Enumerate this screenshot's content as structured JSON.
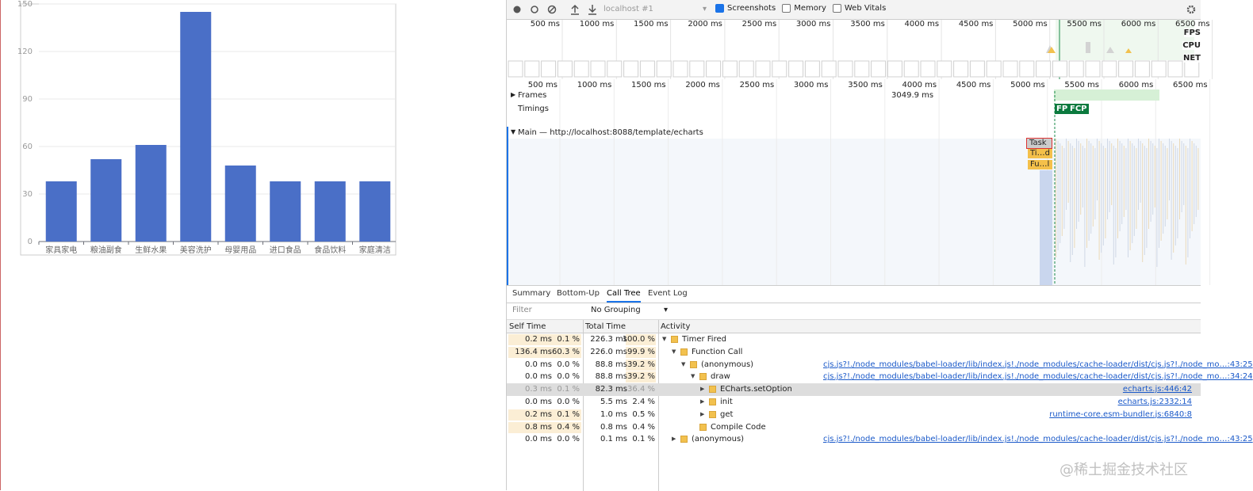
{
  "chart_data": {
    "type": "bar",
    "categories": [
      "家具家电",
      "粮油副食",
      "生鲜水果",
      "美容洗护",
      "母婴用品",
      "进口食品",
      "食品饮料",
      "家庭清洁"
    ],
    "values": [
      38,
      52,
      61,
      145,
      48,
      38,
      38,
      38
    ],
    "color": "#4a6fc7",
    "ylim": [
      0,
      150
    ],
    "yticks": [
      0,
      30,
      60,
      90,
      120,
      150
    ],
    "grid": true
  },
  "devtools": {
    "toolbar": {
      "target": "localhost #1",
      "checkboxes": [
        {
          "label": "Screenshots",
          "checked": true
        },
        {
          "label": "Memory",
          "checked": false
        },
        {
          "label": "Web Vitals",
          "checked": false
        }
      ]
    },
    "overview_ticks": [
      "500 ms",
      "1000 ms",
      "1500 ms",
      "2000 ms",
      "2500 ms",
      "3000 ms",
      "3500 ms",
      "4000 ms",
      "4500 ms",
      "5000 ms",
      "5500 ms",
      "6000 ms",
      "6500 ms"
    ],
    "overview_labels": [
      "FPS",
      "CPU",
      "NET"
    ],
    "ruler_ticks": [
      "500 ms",
      "1000 ms",
      "1500 ms",
      "2000 ms",
      "2500 ms",
      "3000 ms",
      "3500 ms",
      "4000 ms",
      "4500 ms",
      "5000 ms",
      "5500 ms",
      "6000 ms",
      "6500 ms"
    ],
    "tracks": {
      "frames": "Frames",
      "frame_duration": "3049.9 ms",
      "timings": "Timings",
      "fp": "FP",
      "fcp": "FCP",
      "main": "Main — http://localhost:8088/template/echarts",
      "task": "Task",
      "timer": "Ti…d",
      "function": "Fu…l"
    },
    "tabs": [
      "Summary",
      "Bottom-Up",
      "Call Tree",
      "Event Log"
    ],
    "filter": "Filter",
    "grouping": "No Grouping",
    "columns": [
      "Self Time",
      "Total Time",
      "Activity"
    ],
    "rows": [
      {
        "self_time": "0.2 ms",
        "self_pct": "0.1 %",
        "total_time": "226.3 ms",
        "total_pct": "100.0 %",
        "activity": "Timer Fired"
      },
      {
        "self_time": "136.4 ms",
        "self_pct": "60.3 %",
        "total_time": "226.0 ms",
        "total_pct": "99.9 %",
        "activity": "Function Call"
      },
      {
        "self_time": "0.0 ms",
        "self_pct": "0.0 %",
        "total_time": "88.8 ms",
        "total_pct": "39.2 %",
        "activity": "(anonymous)",
        "source": "cjs.js?!./node_modules/babel-loader/lib/index.js!./node_modules/cache-loader/dist/cjs.js?!./node_mo…:43:25"
      },
      {
        "self_time": "0.0 ms",
        "self_pct": "0.0 %",
        "total_time": "88.8 ms",
        "total_pct": "39.2 %",
        "activity": "draw",
        "source": "cjs.js?!./node_modules/babel-loader/lib/index.js!./node_modules/cache-loader/dist/cjs.js?!./node_mo…:34:24"
      },
      {
        "self_time": "0.3 ms",
        "self_pct": "0.1 %",
        "total_time": "82.3 ms",
        "total_pct": "36.4 %",
        "activity": "ECharts.setOption",
        "source": "echarts.js:446:42"
      },
      {
        "self_time": "0.0 ms",
        "self_pct": "0.0 %",
        "total_time": "5.5 ms",
        "total_pct": "2.4 %",
        "activity": "init",
        "source": "echarts.js:2332:14"
      },
      {
        "self_time": "0.2 ms",
        "self_pct": "0.1 %",
        "total_time": "1.0 ms",
        "total_pct": "0.5 %",
        "activity": "get",
        "source": "runtime-core.esm-bundler.js:6840:8"
      },
      {
        "self_time": "0.8 ms",
        "self_pct": "0.4 %",
        "total_time": "0.8 ms",
        "total_pct": "0.4 %",
        "activity": "Compile Code"
      },
      {
        "self_time": "0.0 ms",
        "self_pct": "0.0 %",
        "total_time": "0.1 ms",
        "total_pct": "0.1 %",
        "activity": "(anonymous)",
        "source": "cjs.js?!./node_modules/babel-loader/lib/index.js!./node_modules/cache-loader/dist/cjs.js?!./node_mo…:43:25"
      }
    ]
  },
  "watermark": "@稀土掘金技术社区"
}
